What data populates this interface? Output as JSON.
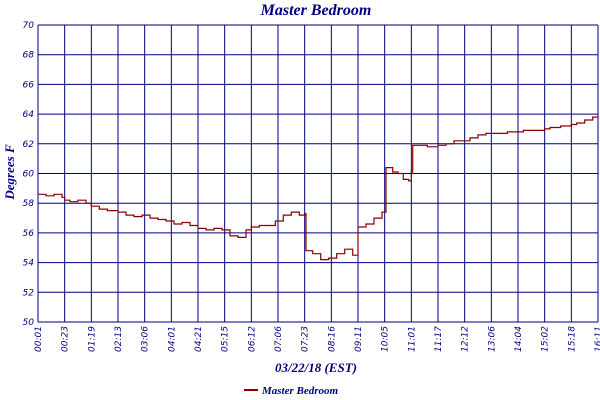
{
  "chart_data": {
    "type": "line",
    "title": "Master Bedroom",
    "xlabel": "03/22/18 (EST)",
    "ylabel": "Degrees F",
    "ylim": [
      50,
      70
    ],
    "yticks": [
      "50",
      "52",
      "54",
      "56",
      "58",
      "60",
      "62",
      "64",
      "66",
      "68",
      "70"
    ],
    "xticks": [
      "00:01",
      "00:23",
      "01:19",
      "02:13",
      "03:06",
      "04:01",
      "04:21",
      "05:15",
      "06:12",
      "07:06",
      "07:23",
      "08:16",
      "09:11",
      "10:05",
      "11:01",
      "11:17",
      "12:12",
      "13:06",
      "14:04",
      "15:02",
      "15:18",
      "16:11"
    ],
    "grid": true,
    "legend_position": "bottom",
    "series": [
      {
        "name": "Master Bedroom",
        "color": "#8b0000",
        "x": [
          0,
          0.3,
          0.6,
          0.9,
          1.0,
          1.2,
          1.5,
          1.8,
          2.0,
          2.3,
          2.6,
          2.9,
          3.0,
          3.3,
          3.6,
          3.9,
          4.2,
          4.5,
          4.8,
          5.1,
          5.4,
          5.7,
          6.0,
          6.3,
          6.6,
          6.9,
          7.2,
          7.5,
          7.8,
          8.0,
          8.3,
          8.6,
          8.9,
          9.2,
          9.5,
          9.8,
          10.0,
          10.05,
          10.3,
          10.6,
          10.9,
          11.2,
          11.5,
          11.8,
          12.0,
          12.3,
          12.6,
          12.9,
          13.0,
          13.05,
          13.3,
          13.5,
          13.7,
          13.9,
          14.0,
          14.05,
          14.3,
          14.6,
          15.0,
          15.3,
          15.6,
          15.9,
          16.2,
          16.5,
          16.8,
          17.0,
          17.3,
          17.6,
          17.9,
          18.2,
          18.5,
          18.8,
          19.0,
          19.2,
          19.4,
          19.6,
          19.8,
          20.0,
          20.2,
          20.5,
          20.8,
          21.0
        ],
        "y": [
          58.6,
          58.5,
          58.6,
          58.4,
          58.2,
          58.1,
          58.2,
          58.0,
          57.8,
          57.6,
          57.5,
          57.5,
          57.4,
          57.2,
          57.1,
          57.2,
          57.0,
          56.9,
          56.8,
          56.6,
          56.7,
          56.5,
          56.3,
          56.2,
          56.3,
          56.2,
          55.8,
          55.7,
          56.2,
          56.4,
          56.5,
          56.5,
          56.8,
          57.2,
          57.4,
          57.2,
          57.3,
          54.8,
          54.6,
          54.2,
          54.3,
          54.6,
          54.9,
          54.5,
          56.4,
          56.6,
          57.0,
          57.4,
          57.4,
          60.4,
          60.1,
          60.0,
          59.6,
          59.5,
          60.1,
          61.9,
          61.9,
          61.8,
          61.9,
          62.0,
          62.2,
          62.2,
          62.4,
          62.6,
          62.7,
          62.7,
          62.7,
          62.8,
          62.8,
          62.9,
          62.9,
          62.9,
          63.0,
          63.1,
          63.1,
          63.2,
          63.2,
          63.3,
          63.4,
          63.6,
          63.8,
          64.0
        ]
      }
    ]
  }
}
